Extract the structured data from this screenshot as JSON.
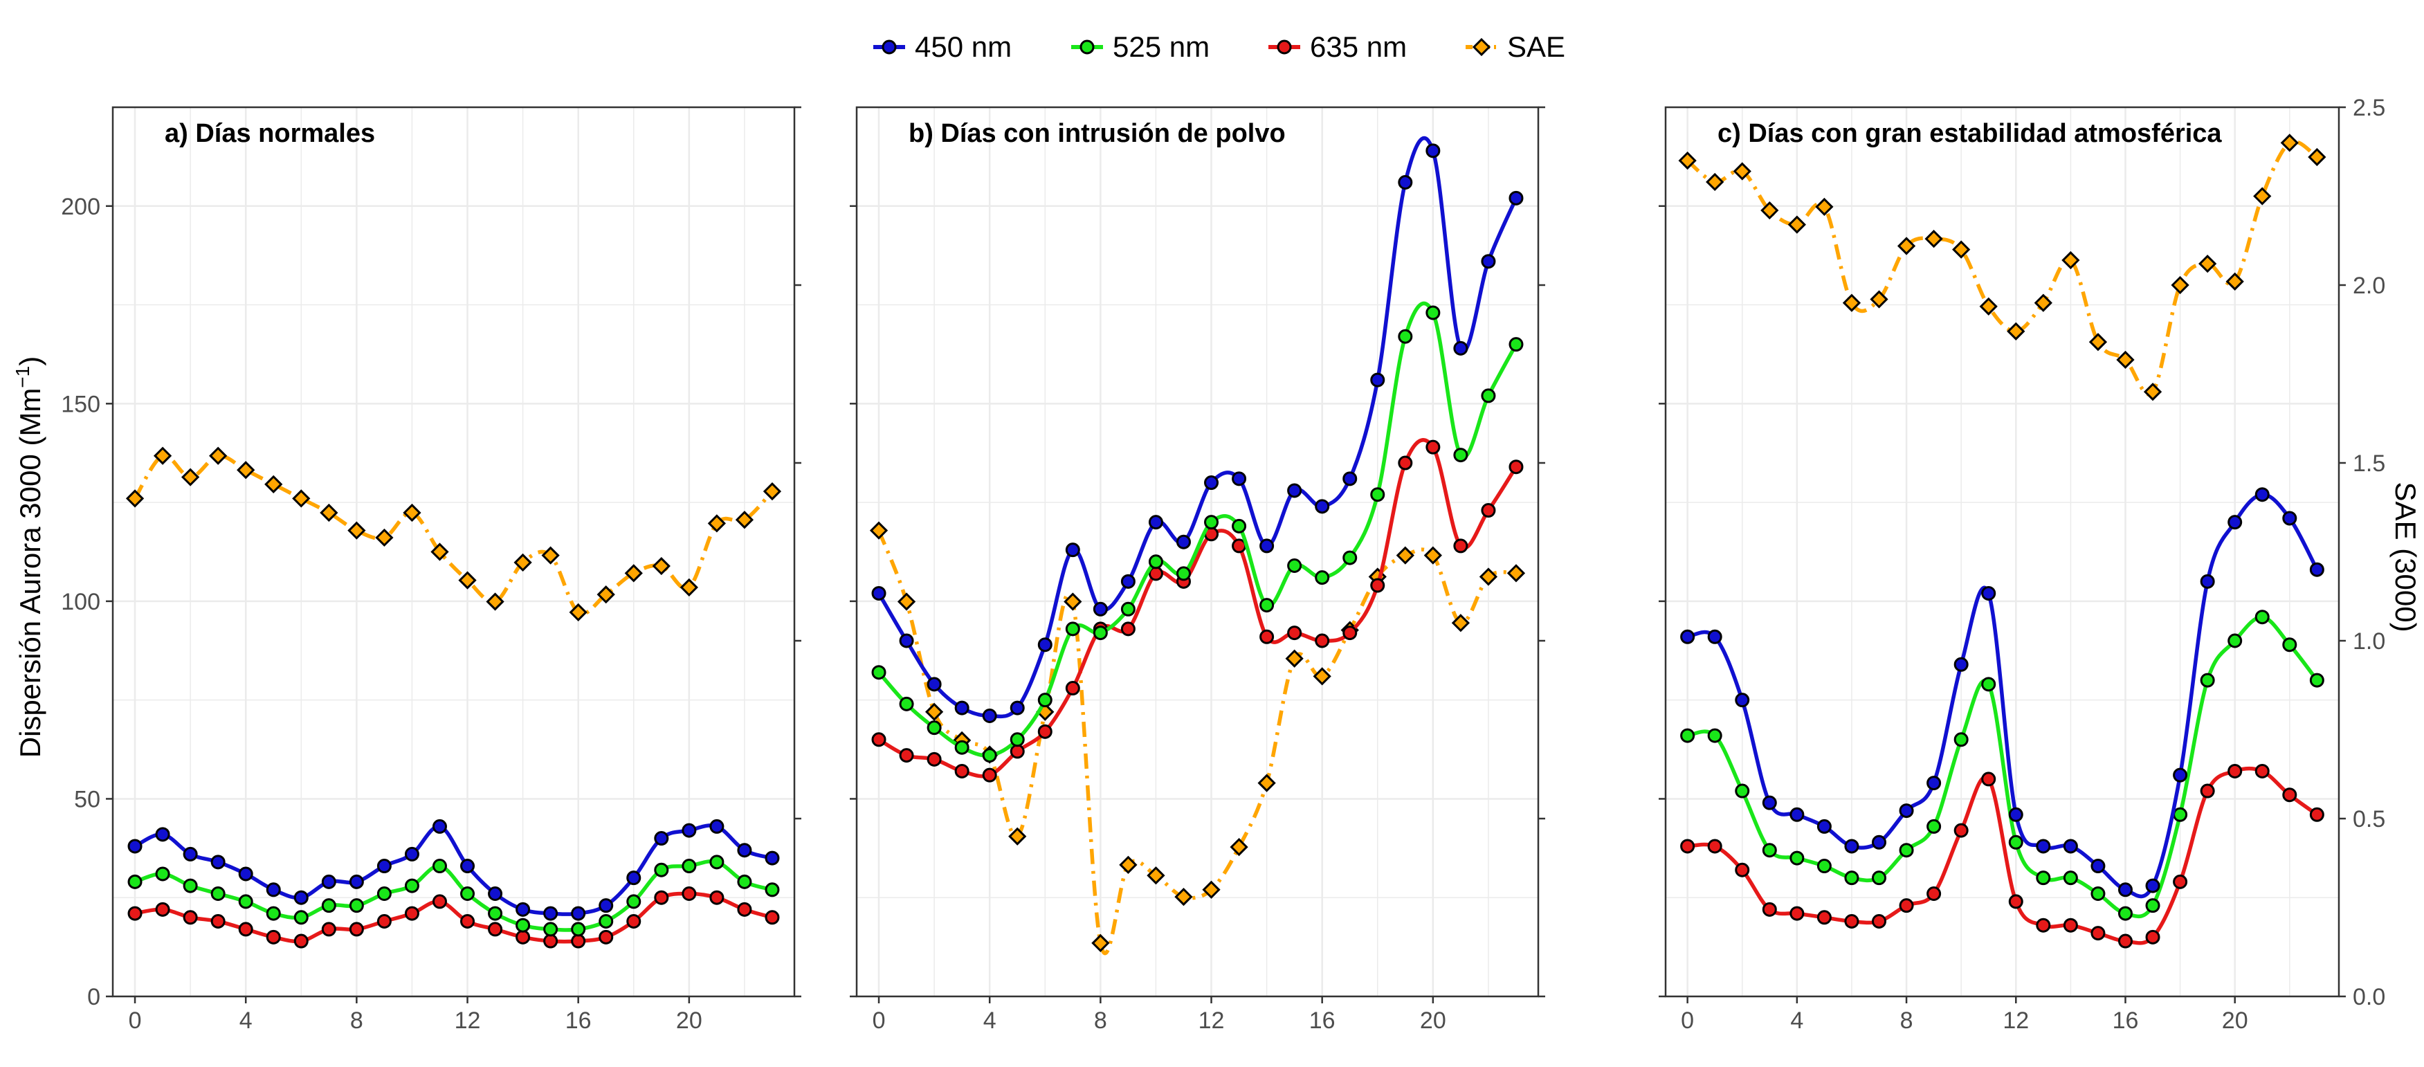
{
  "chart_data": {
    "type": "line",
    "y_left_label": "Dispersión Aurora 3000 (Mm",
    "y_left_label_sup": "−1",
    "y_left_label_close": ")",
    "y_right_label": "SAE (3000)",
    "ylim_left": [
      0,
      225
    ],
    "ylim_right": [
      0,
      2.5
    ],
    "y_left_ticks": [
      "0",
      "50",
      "100",
      "150",
      "200"
    ],
    "y_right_ticks": [
      "0.0",
      "0.5",
      "1.0",
      "1.5",
      "2.0",
      "2.5"
    ],
    "x_ticks": [
      "0",
      "4",
      "8",
      "12",
      "16",
      "20"
    ],
    "xlim": [
      -0.8,
      23.8
    ],
    "grid": true,
    "legend_position": "top",
    "legend": [
      {
        "name": "450 nm",
        "color": "#1010d0",
        "marker": "circle",
        "line": "solid"
      },
      {
        "name": "525 nm",
        "color": "#19e619",
        "marker": "circle",
        "line": "solid"
      },
      {
        "name": "635 nm",
        "color": "#e61919",
        "marker": "circle",
        "line": "solid"
      },
      {
        "name": "SAE",
        "color": "#ffa500",
        "marker": "diamond",
        "line": "dashdot"
      }
    ],
    "x": [
      0,
      1,
      2,
      3,
      4,
      5,
      6,
      7,
      8,
      9,
      10,
      11,
      12,
      13,
      14,
      15,
      16,
      17,
      18,
      19,
      20,
      21,
      22,
      23
    ],
    "panels": [
      {
        "title": "a) Días normales",
        "series": {
          "450 nm": [
            38,
            41,
            36,
            34,
            31,
            27,
            25,
            29,
            29,
            33,
            36,
            43,
            33,
            26,
            22,
            21,
            21,
            23,
            30,
            40,
            42,
            43,
            37,
            35
          ],
          "525 nm": [
            29,
            31,
            28,
            26,
            24,
            21,
            20,
            23,
            23,
            26,
            28,
            33,
            26,
            21,
            18,
            17,
            17,
            19,
            24,
            32,
            33,
            34,
            29,
            27
          ],
          "635 nm": [
            21,
            22,
            20,
            19,
            17,
            15,
            14,
            17,
            17,
            19,
            21,
            24,
            19,
            17,
            15,
            14,
            14,
            15,
            19,
            25,
            26,
            25,
            22,
            20
          ],
          "SAE": [
            1.4,
            1.52,
            1.46,
            1.52,
            1.48,
            1.44,
            1.4,
            1.36,
            1.31,
            1.29,
            1.36,
            1.25,
            1.17,
            1.11,
            1.22,
            1.24,
            1.08,
            1.13,
            1.19,
            1.21,
            1.15,
            1.33,
            1.34,
            1.42
          ]
        }
      },
      {
        "title": "b) Días con intrusión de polvo",
        "series": {
          "450 nm": [
            102,
            90,
            79,
            73,
            71,
            73,
            89,
            113,
            98,
            105,
            120,
            115,
            130,
            131,
            114,
            128,
            124,
            131,
            156,
            206,
            214,
            164,
            186,
            202
          ],
          "525 nm": [
            82,
            74,
            68,
            63,
            61,
            65,
            75,
            93,
            92,
            98,
            110,
            107,
            120,
            119,
            99,
            109,
            106,
            111,
            127,
            167,
            173,
            137,
            152,
            165
          ],
          "635 nm": [
            65,
            61,
            60,
            57,
            56,
            62,
            67,
            78,
            93,
            93,
            107,
            105,
            117,
            114,
            91,
            92,
            90,
            92,
            104,
            135,
            139,
            114,
            123,
            134
          ],
          "SAE": [
            1.31,
            1.11,
            0.8,
            0.72,
            0.68,
            0.45,
            0.8,
            1.11,
            0.15,
            0.37,
            0.34,
            0.28,
            0.3,
            0.42,
            0.6,
            0.95,
            0.9,
            1.03,
            1.18,
            1.24,
            1.24,
            1.05,
            1.18,
            1.19
          ]
        }
      },
      {
        "title": "c) Días con gran estabilidad atmosférica",
        "series": {
          "450 nm": [
            91,
            91,
            75,
            49,
            46,
            43,
            38,
            39,
            47,
            54,
            84,
            102,
            46,
            38,
            38,
            33,
            27,
            28,
            56,
            105,
            120,
            127,
            121,
            108
          ],
          "525 nm": [
            66,
            66,
            52,
            37,
            35,
            33,
            30,
            30,
            37,
            43,
            65,
            79,
            39,
            30,
            30,
            26,
            21,
            23,
            46,
            80,
            90,
            96,
            89,
            80
          ],
          "635 nm": [
            38,
            38,
            32,
            22,
            21,
            20,
            19,
            19,
            23,
            26,
            42,
            55,
            24,
            18,
            18,
            16,
            14,
            15,
            29,
            52,
            57,
            57,
            51,
            46
          ],
          "SAE": [
            2.35,
            2.29,
            2.32,
            2.21,
            2.17,
            2.22,
            1.95,
            1.96,
            2.11,
            2.13,
            2.1,
            1.94,
            1.87,
            1.95,
            2.07,
            1.84,
            1.79,
            1.7,
            2.0,
            2.06,
            2.01,
            2.25,
            2.4,
            2.36
          ]
        }
      }
    ]
  }
}
